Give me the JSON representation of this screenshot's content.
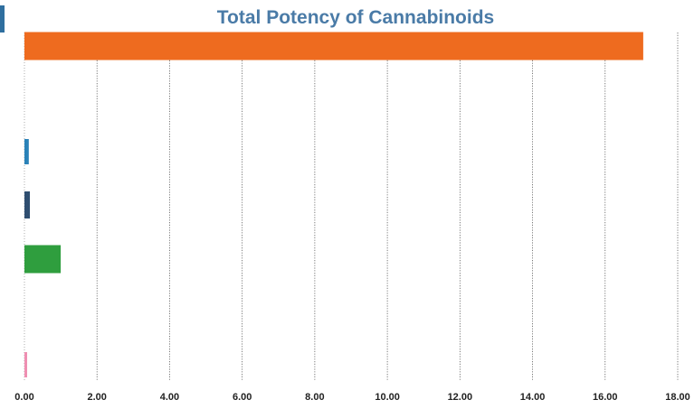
{
  "chart_data": {
    "type": "bar",
    "orientation": "horizontal",
    "title": "Total Potency of Cannabinoids",
    "xlabel": "",
    "ylabel": "",
    "xlim": [
      0,
      18
    ],
    "x_ticks": [
      "0.00",
      "2.00",
      "4.00",
      "6.00",
      "8.00",
      "10.00",
      "12.00",
      "14.00",
      "16.00",
      "18.00"
    ],
    "grid": true,
    "legend": "none",
    "categories": [
      "",
      "",
      "",
      "",
      "",
      ""
    ],
    "values": [
      17.05,
      0,
      0.12,
      0.15,
      1.0,
      0.05
    ],
    "colors": [
      "#ee6b1f",
      "#4d6fa6",
      "#2a82b8",
      "#2f4e70",
      "#2f9e3e",
      "#ef8fb2"
    ]
  }
}
